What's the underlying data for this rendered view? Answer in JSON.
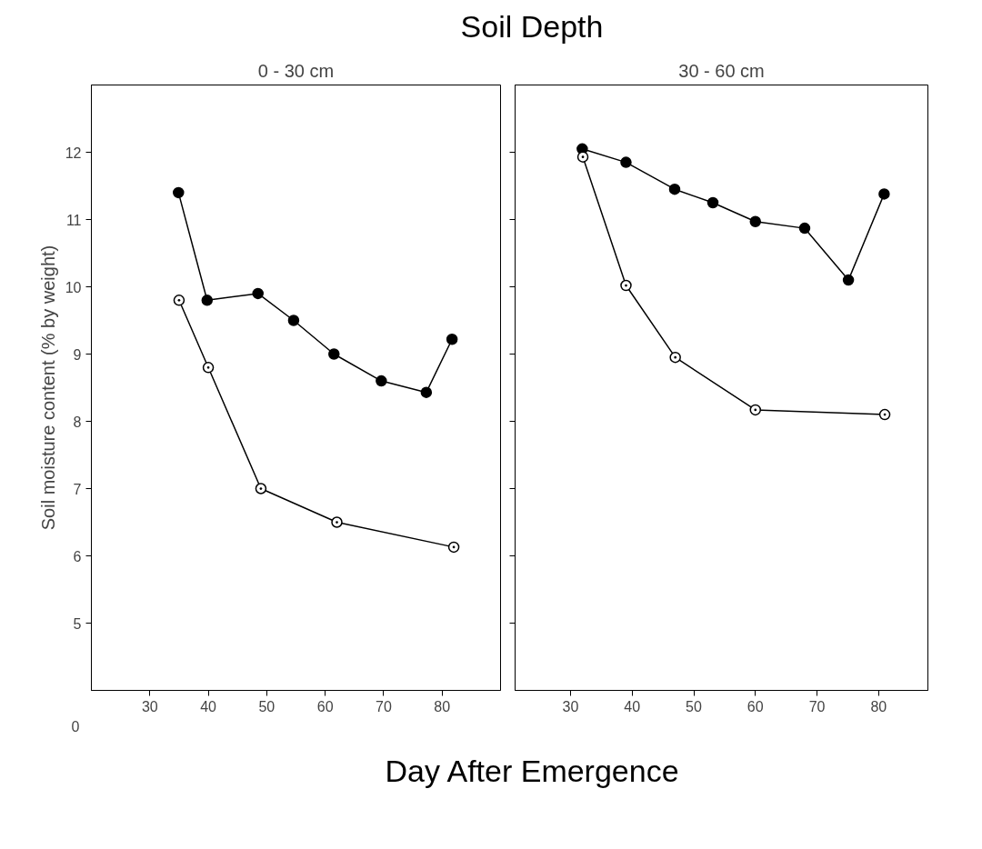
{
  "chart_data": [
    {
      "type": "line",
      "title": "Soil Depth",
      "subtitle": "0 - 30 cm",
      "xlabel": "Day After Emergence",
      "ylabel": "Soil moisture content (% by weight)",
      "annotations": [
        "0"
      ],
      "xlim": [
        20,
        90
      ],
      "xticks": [
        30,
        40,
        50,
        60,
        70,
        80
      ],
      "ylim": [
        4,
        13
      ],
      "yticks": [
        5,
        6,
        7,
        8,
        9,
        10,
        11,
        12
      ],
      "grid": false,
      "series": [
        {
          "color": "#000000",
          "marker": "circle",
          "x": [
            34.9,
            39.8,
            48.5,
            54.6,
            61.5,
            69.6,
            77.3,
            81.7
          ],
          "values": [
            11.4,
            9.8,
            9.9,
            9.5,
            9.0,
            8.6,
            8.43,
            9.22
          ]
        },
        {
          "color": "#000000",
          "marker": "circle",
          "x": [
            35,
            40,
            49,
            62,
            82
          ],
          "values": [
            9.8,
            8.8,
            7.0,
            6.5,
            6.13
          ]
        }
      ]
    },
    {
      "type": "line",
      "subtitle": "30 - 60 cm",
      "tick_labels": "x",
      "xlim": [
        21,
        88
      ],
      "xticks": [
        30,
        40,
        50,
        60,
        70,
        80
      ],
      "ylim": [
        4,
        13
      ],
      "yticks": [
        5,
        6,
        7,
        8,
        9,
        10,
        11,
        12
      ],
      "grid": false,
      "series": [
        {
          "color": "#000000",
          "marker": "circle",
          "x": [
            31.9,
            39,
            46.9,
            53.1,
            60,
            68,
            75.1,
            80.9
          ],
          "values": [
            12.05,
            11.85,
            11.45,
            11.25,
            10.97,
            10.87,
            10.1,
            11.38
          ]
        },
        {
          "color": "#000000",
          "marker": "circle",
          "x": [
            32,
            39,
            47,
            60,
            81
          ],
          "values": [
            11.93,
            10.02,
            8.95,
            8.17,
            8.1
          ]
        }
      ]
    }
  ]
}
